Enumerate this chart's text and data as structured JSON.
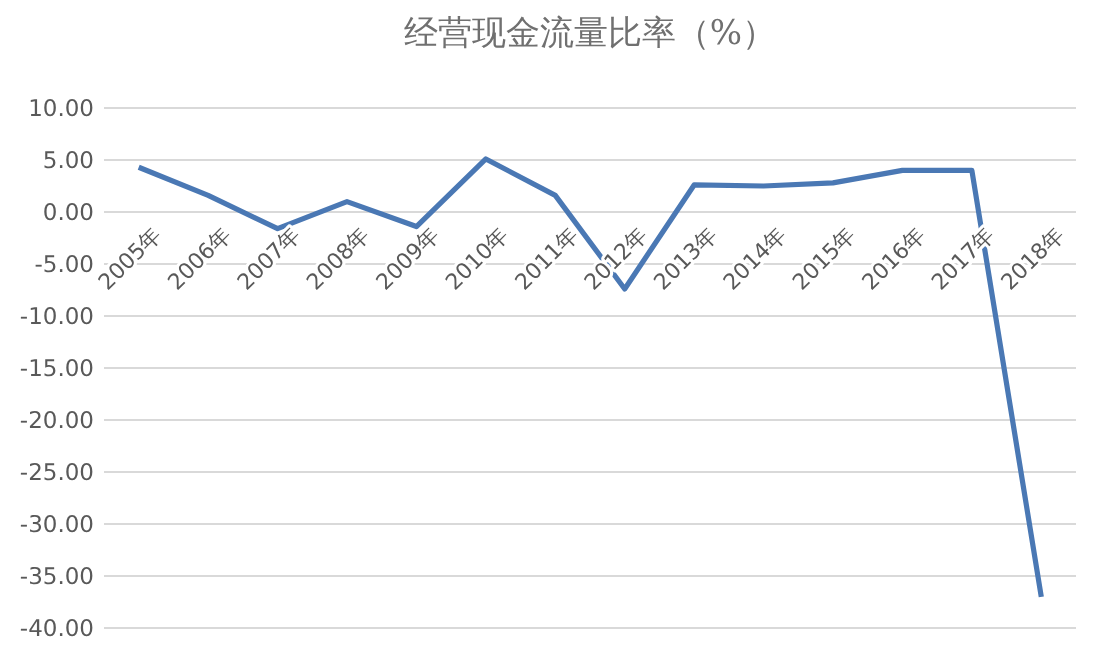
{
  "chart_data": {
    "type": "line",
    "title": "经营现金流量比率（%）",
    "categories": [
      "2005年",
      "2006年",
      "2007年",
      "2008年",
      "2009年",
      "2010年",
      "2011年",
      "2012年",
      "2013年",
      "2014年",
      "2015年",
      "2016年",
      "2017年",
      "2018年"
    ],
    "series": [
      {
        "color": "#4a78b4",
        "values": [
          4.3,
          1.6,
          -1.6,
          1.0,
          -1.4,
          5.1,
          1.6,
          -7.4,
          2.6,
          2.5,
          2.8,
          4.0,
          4.0,
          -37.0
        ]
      }
    ],
    "ylim": [
      -40,
      10
    ],
    "yticks": [
      {
        "value": 10,
        "label": "10.00"
      },
      {
        "value": 5,
        "label": "5.00"
      },
      {
        "value": 0,
        "label": "0.00"
      },
      {
        "value": -5,
        "label": "-5.00"
      },
      {
        "value": -10,
        "label": "-10.00"
      },
      {
        "value": -15,
        "label": "-15.00"
      },
      {
        "value": -20,
        "label": "-20.00"
      },
      {
        "value": -25,
        "label": "-25.00"
      },
      {
        "value": -30,
        "label": "-30.00"
      },
      {
        "value": -35,
        "label": "-35.00"
      },
      {
        "value": -40,
        "label": "-40.00"
      }
    ],
    "grid": "y",
    "marker": "none",
    "line_style": "solid"
  }
}
